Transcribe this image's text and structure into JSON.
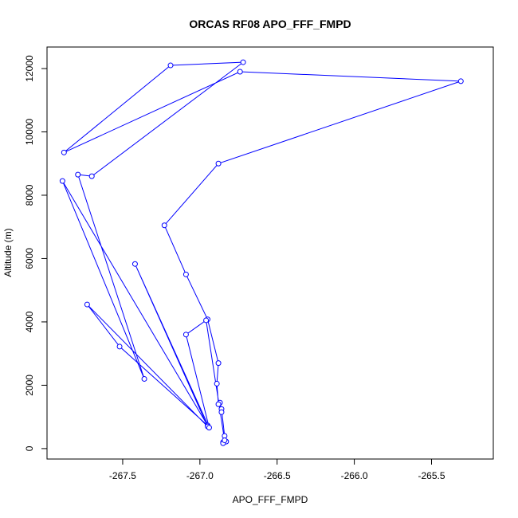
{
  "chart_data": {
    "type": "line",
    "title": "ORCAS RF08 APO_FFF_FMPD",
    "xlabel": "APO_FFF_FMPD",
    "ylabel": "Altitude (m)",
    "xlim": [
      -267.99,
      -265.1
    ],
    "ylim": [
      -330,
      12680
    ],
    "x_ticks": [
      -267.5,
      -267.0,
      -266.5,
      -266.0,
      -265.5
    ],
    "x_tick_labels": [
      "-267.5",
      "-267.0",
      "-266.5",
      "-266.0",
      "-265.5"
    ],
    "y_ticks": [
      0,
      2000,
      4000,
      6000,
      8000,
      10000,
      12000
    ],
    "y_tick_labels": [
      "0",
      "2000",
      "4000",
      "6000",
      "8000",
      "10000",
      "12000"
    ],
    "grid": false,
    "marker": "open-circle",
    "series": [
      {
        "color": "#0000ff",
        "points": [
          {
            "x": -266.85,
            "y": 200
          },
          {
            "x": -266.83,
            "y": 220
          },
          {
            "x": -266.85,
            "y": 170
          },
          {
            "x": -266.84,
            "y": 400
          },
          {
            "x": -266.86,
            "y": 1250
          },
          {
            "x": -266.87,
            "y": 1450
          },
          {
            "x": -266.86,
            "y": 1150
          },
          {
            "x": -266.88,
            "y": 1400
          },
          {
            "x": -266.89,
            "y": 2050
          },
          {
            "x": -266.88,
            "y": 2700
          },
          {
            "x": -266.95,
            "y": 4080
          },
          {
            "x": -267.09,
            "y": 5500
          },
          {
            "x": -267.23,
            "y": 7050
          },
          {
            "x": -266.88,
            "y": 9000
          },
          {
            "x": -265.31,
            "y": 11600
          },
          {
            "x": -266.74,
            "y": 11900
          },
          {
            "x": -267.88,
            "y": 9350
          },
          {
            "x": -267.19,
            "y": 12100
          },
          {
            "x": -266.72,
            "y": 12200
          },
          {
            "x": -267.7,
            "y": 8600
          },
          {
            "x": -267.79,
            "y": 8650
          },
          {
            "x": -267.36,
            "y": 2200
          },
          {
            "x": -267.89,
            "y": 8450
          },
          {
            "x": -266.95,
            "y": 730
          },
          {
            "x": -267.52,
            "y": 3220
          },
          {
            "x": -267.73,
            "y": 4550
          },
          {
            "x": -266.95,
            "y": 700
          },
          {
            "x": -267.42,
            "y": 5830
          },
          {
            "x": -266.94,
            "y": 660
          },
          {
            "x": -267.09,
            "y": 3600
          },
          {
            "x": -266.96,
            "y": 4050
          },
          {
            "x": -266.84,
            "y": 260
          }
        ]
      }
    ]
  }
}
